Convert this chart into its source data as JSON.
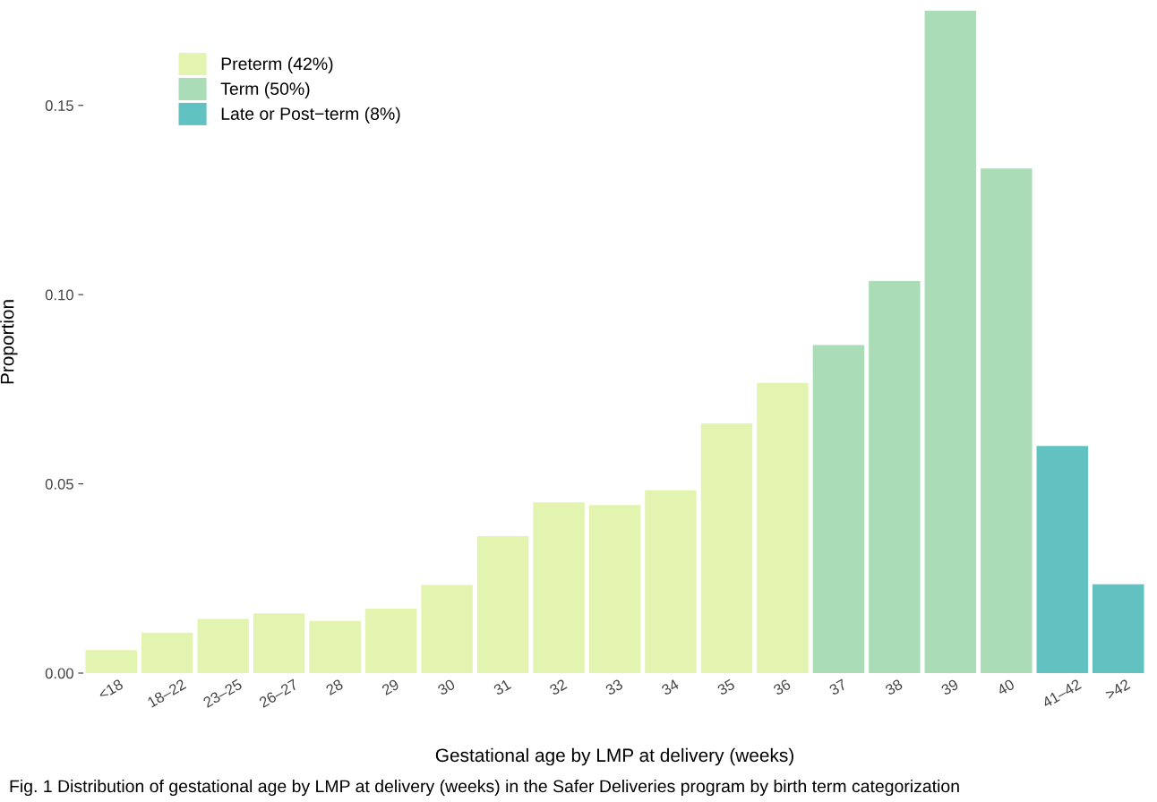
{
  "chart_data": {
    "type": "bar",
    "xlabel": "Gestational age by LMP at delivery (weeks)",
    "ylabel": "Proportion",
    "categories": [
      "<18",
      "18–22",
      "23–25",
      "26–27",
      "28",
      "29",
      "30",
      "31",
      "32",
      "33",
      "34",
      "35",
      "36",
      "37",
      "38",
      "39",
      "40",
      "41–42",
      ">42"
    ],
    "series": [
      {
        "name": "Preterm (42%)",
        "color": "#e2f4b0",
        "values": [
          0.0061,
          0.0107,
          0.0143,
          0.0158,
          0.0138,
          0.017,
          0.0233,
          0.0362,
          0.0451,
          0.0444,
          0.0483,
          0.066,
          0.0767,
          null,
          null,
          null,
          null,
          null,
          null
        ]
      },
      {
        "name": "Term (50%)",
        "color": "#aadcb7",
        "values": [
          null,
          null,
          null,
          null,
          null,
          null,
          null,
          null,
          null,
          null,
          null,
          null,
          null,
          0.0867,
          0.1036,
          0.175,
          0.1333,
          null,
          null
        ]
      },
      {
        "name": "Late or Post−term (8%)",
        "color": "#62c1c1",
        "values": [
          null,
          null,
          null,
          null,
          null,
          null,
          null,
          null,
          null,
          null,
          null,
          null,
          null,
          null,
          null,
          null,
          null,
          0.06,
          0.0235
        ]
      }
    ],
    "ylim": [
      0,
      0.175
    ],
    "yticks": [
      {
        "value": 0,
        "label": "0.00"
      },
      {
        "value": 0.05,
        "label": "0.05"
      },
      {
        "value": 0.1,
        "label": "0.10"
      },
      {
        "value": 0.15,
        "label": "0.15"
      }
    ],
    "grid": false,
    "legend": "top left",
    "annotations": [
      "Fig. 1 Distribution of gestational age by LMP at delivery (weeks) in the Safer Deliveries program by birth term categorization"
    ]
  }
}
